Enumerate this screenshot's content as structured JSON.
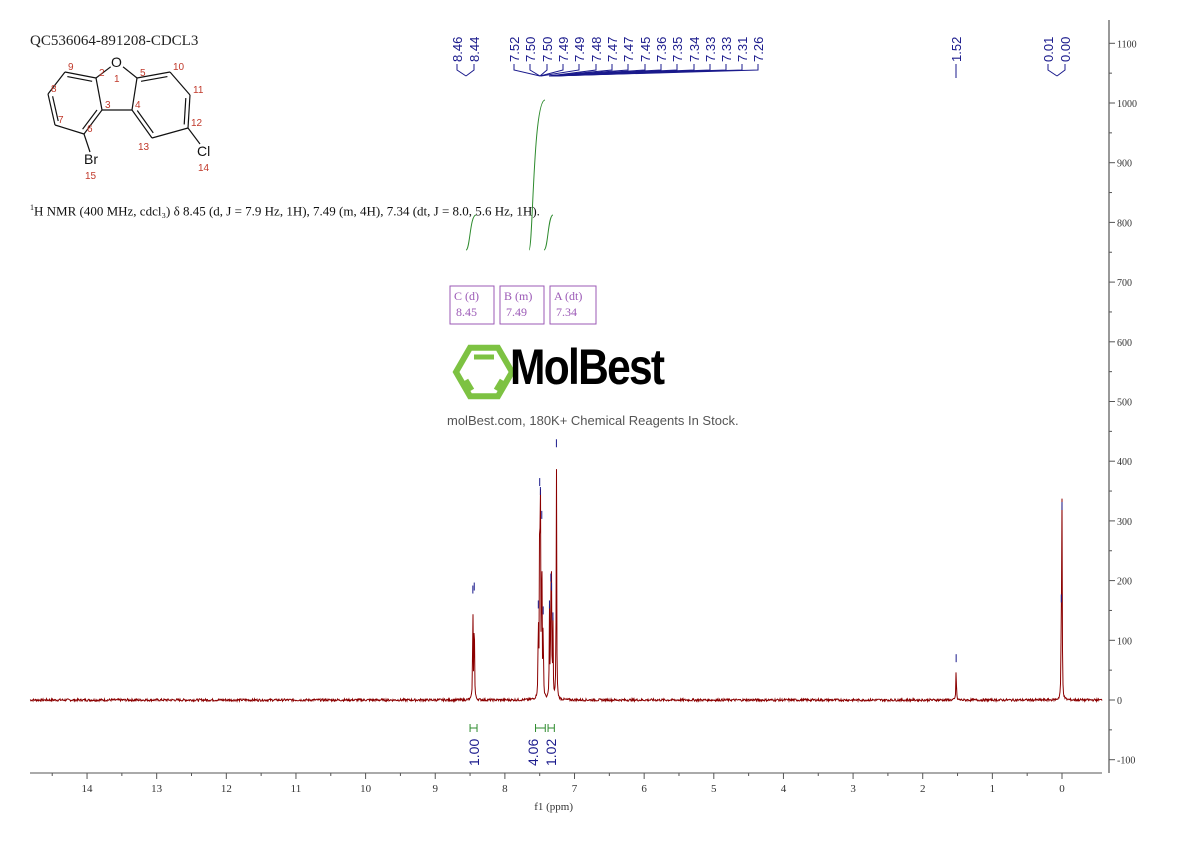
{
  "sample_id": "QC536064-891208-CDCL3",
  "nmr_description": {
    "prefix_sup": "1",
    "text": "H NMR (400 MHz, cdcl₃) δ 8.45 (d, J = 7.9 Hz, 1H), 7.49 (m, 4H), 7.34 (dt, J = 8.0, 5.6 Hz, 1H)."
  },
  "structure": {
    "atoms": [
      {
        "label": "O",
        "num": "1"
      },
      {
        "label": "",
        "num": "2"
      },
      {
        "label": "",
        "num": "3"
      },
      {
        "label": "",
        "num": "4"
      },
      {
        "label": "",
        "num": "5"
      },
      {
        "label": "",
        "num": "6"
      },
      {
        "label": "",
        "num": "7"
      },
      {
        "label": "",
        "num": "8"
      },
      {
        "label": "",
        "num": "9"
      },
      {
        "label": "",
        "num": "10"
      },
      {
        "label": "",
        "num": "11"
      },
      {
        "label": "",
        "num": "12"
      },
      {
        "label": "",
        "num": "13"
      },
      {
        "label": "Cl",
        "num": "14"
      },
      {
        "label": "Br",
        "num": "15"
      }
    ]
  },
  "watermark": {
    "brand": "MolBest",
    "tagline": "molBest.com, 180K+ Chemical Reagents In Stock.",
    "color": "#7dc242"
  },
  "multiplet_boxes": [
    {
      "label": "B (m)",
      "value": "7.49"
    },
    {
      "label": "C (d)",
      "value": "8.45"
    },
    {
      "label": "A (dt)",
      "value": "7.34"
    }
  ],
  "colors": {
    "spectrum": "#8b0000",
    "peak_labels": "#1a1a8c",
    "integrals": "#2e8b2e",
    "multiplet": "#9b59b6",
    "axis": "#555555"
  },
  "chart_data": {
    "type": "line",
    "xlabel": "f1 (ppm)",
    "xlim": [
      14.82,
      -0.55
    ],
    "x_reversed": true,
    "xticks": [
      14,
      13,
      12,
      11,
      10,
      9,
      8,
      7,
      6,
      5,
      4,
      3,
      2,
      1,
      0
    ],
    "ylim": [
      -120,
      1120
    ],
    "yticks": [
      -100,
      0,
      100,
      200,
      300,
      400,
      500,
      600,
      700,
      800,
      900,
      1000,
      1100
    ],
    "y_axis_side": "right",
    "peaks": [
      {
        "ppm": 8.46,
        "height": 175
      },
      {
        "ppm": 8.44,
        "height": 180
      },
      {
        "ppm": 7.52,
        "height": 150
      },
      {
        "ppm": 7.5,
        "height": 355
      },
      {
        "ppm": 7.49,
        "height": 340
      },
      {
        "ppm": 7.47,
        "height": 300
      },
      {
        "ppm": 7.45,
        "height": 140
      },
      {
        "ppm": 7.36,
        "height": 150
      },
      {
        "ppm": 7.34,
        "height": 195
      },
      {
        "ppm": 7.33,
        "height": 180
      },
      {
        "ppm": 7.31,
        "height": 130
      },
      {
        "ppm": 7.26,
        "height": 420
      },
      {
        "ppm": 1.52,
        "height": 60
      },
      {
        "ppm": 0.01,
        "height": 160
      },
      {
        "ppm": 0.0,
        "height": 315
      }
    ],
    "peak_labels": [
      "8.46",
      "8.44",
      "7.52",
      "7.50",
      "7.50",
      "7.49",
      "7.49",
      "7.48",
      "7.47",
      "7.47",
      "7.45",
      "7.36",
      "7.35",
      "7.34",
      "7.33",
      "7.33",
      "7.31",
      "7.26",
      "1.52",
      "0.01",
      "0.00"
    ],
    "integrals": [
      {
        "from": 8.5,
        "to": 8.4,
        "value": "1.00"
      },
      {
        "from": 7.56,
        "to": 7.42,
        "value": "4.06"
      },
      {
        "from": 7.38,
        "to": 7.29,
        "value": "1.02"
      }
    ]
  }
}
